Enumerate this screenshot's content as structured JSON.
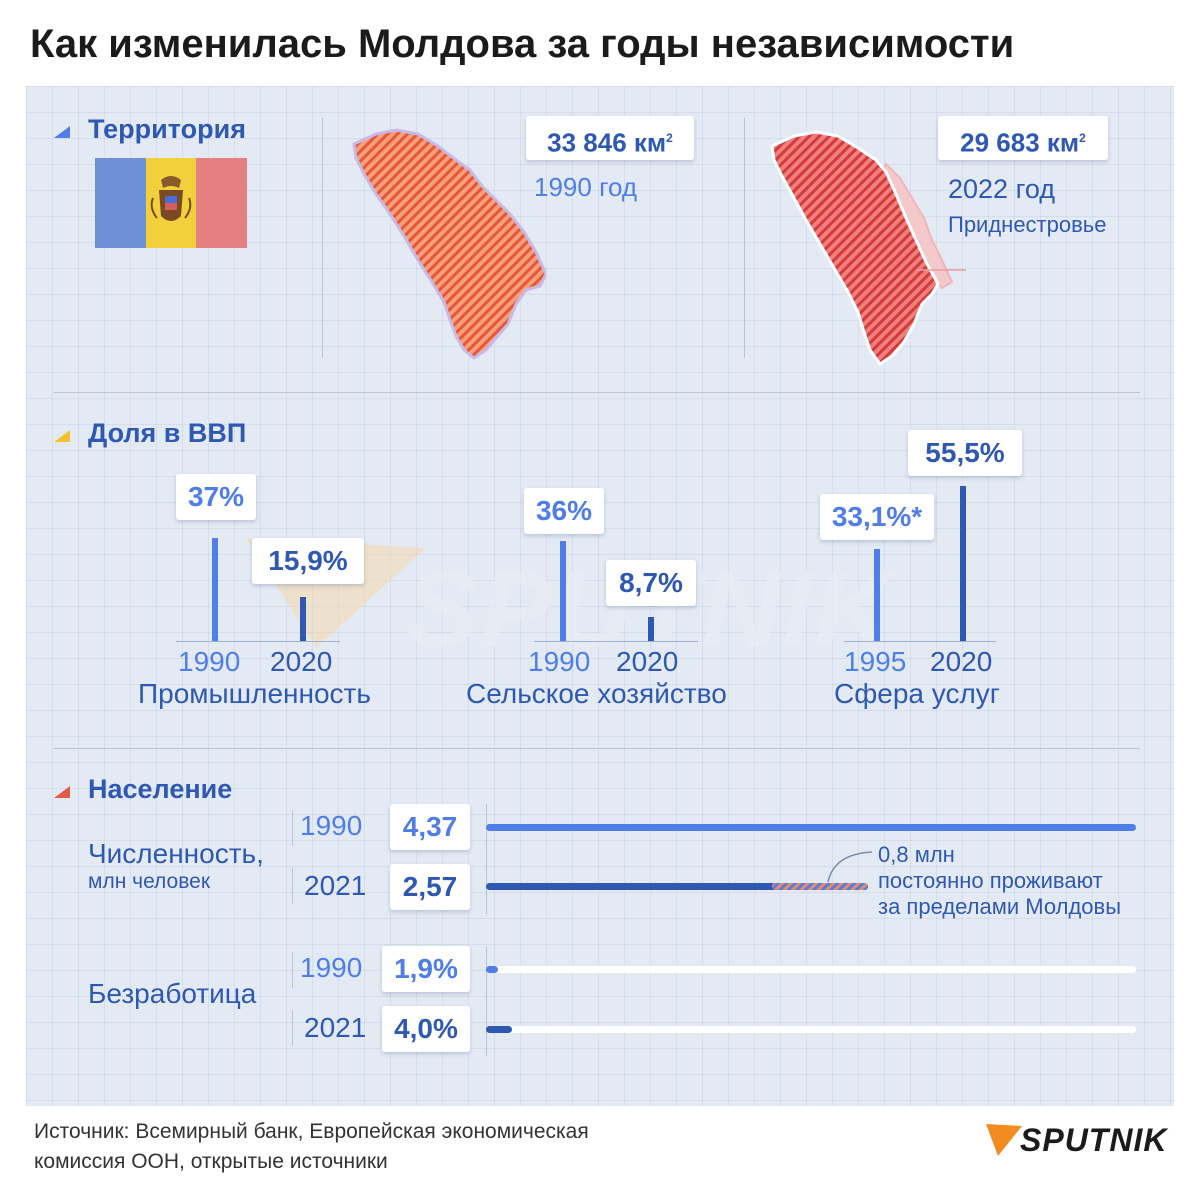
{
  "title": "Как изменилась Молдова за годы независимости",
  "colors": {
    "light_blue": "#4f7ee8",
    "dark_blue": "#2f58b3",
    "map_fill": "#ef9470",
    "map_stripe": "#e8553a",
    "transnistria": "#f3c9cc",
    "flag_blue": "#6f8fd6",
    "flag_yellow": "#f2d03b",
    "flag_red": "#e48080"
  },
  "territory": {
    "heading": "Территория",
    "flag_icon": "moldova-flag",
    "map_1990": {
      "area": "33 846 км",
      "area_sup": "2",
      "year": "1990 год"
    },
    "map_2022": {
      "area": "29 683 км",
      "area_sup": "2",
      "year": "2022 год",
      "region_label": "Приднестровье"
    }
  },
  "gdp": {
    "heading": "Доля в ВВП",
    "groups": [
      {
        "label": "Промышленность",
        "bars": [
          {
            "year": "1990",
            "label": "37%",
            "value": 37
          },
          {
            "year": "2020",
            "label": "15,9%",
            "value": 15.9
          }
        ]
      },
      {
        "label": "Сельское хозяйство",
        "bars": [
          {
            "year": "1990",
            "label": "36%",
            "value": 36
          },
          {
            "year": "2020",
            "label": "8,7%",
            "value": 8.7
          }
        ]
      },
      {
        "label": "Сфера услуг",
        "bars": [
          {
            "year": "1995",
            "label": "33,1%*",
            "value": 33.1
          },
          {
            "year": "2020",
            "label": "55,5%",
            "value": 55.5
          }
        ]
      }
    ]
  },
  "population": {
    "heading": "Население",
    "count_label_line1": "Численность,",
    "count_label_line2": "млн человек",
    "count_rows": [
      {
        "year": "1990",
        "label": "4,37",
        "value": 4.37
      },
      {
        "year": "2021",
        "label": "2,57",
        "value": 2.57,
        "abroad_value": 0.8
      }
    ],
    "abroad_note": [
      "0,8 млн",
      "постоянно проживают",
      "за пределами Молдовы"
    ],
    "unemp_label": "Безработица",
    "unemp_rows": [
      {
        "year": "1990",
        "label": "1,9%",
        "value": 1.9
      },
      {
        "year": "2021",
        "label": "4,0%",
        "value": 4.0
      }
    ]
  },
  "chart_data": [
    {
      "type": "bar",
      "title": "Доля в ВВП",
      "categories": [
        "Промышленность",
        "Сельское хозяйство",
        "Сфера услуг"
      ],
      "series": [
        {
          "values": [
            37,
            36,
            33.1
          ],
          "x": [
            "1990",
            "1990",
            "1995"
          ]
        },
        {
          "values": [
            15.9,
            8.7,
            55.5
          ],
          "x": [
            "2020",
            "2020",
            "2020"
          ]
        }
      ],
      "note": "*"
    },
    {
      "type": "bar",
      "title": "Численность, млн человек",
      "categories": [
        "1990",
        "2021"
      ],
      "values": [
        4.37,
        2.57
      ],
      "extra": {
        "year": "2021",
        "abroad": 0.8
      }
    },
    {
      "type": "bar",
      "title": "Безработица",
      "categories": [
        "1990",
        "2021"
      ],
      "values": [
        1.9,
        4.0
      ]
    }
  ],
  "footer": {
    "source_line1": "Источник:  Всемирный банк, Европейская экономическая",
    "source_line2": "комиссия ООН, открытые источники",
    "brand": "SPUTNIK",
    "brand_icon": "sputnik-logo"
  },
  "watermark": "SPUTNIK"
}
